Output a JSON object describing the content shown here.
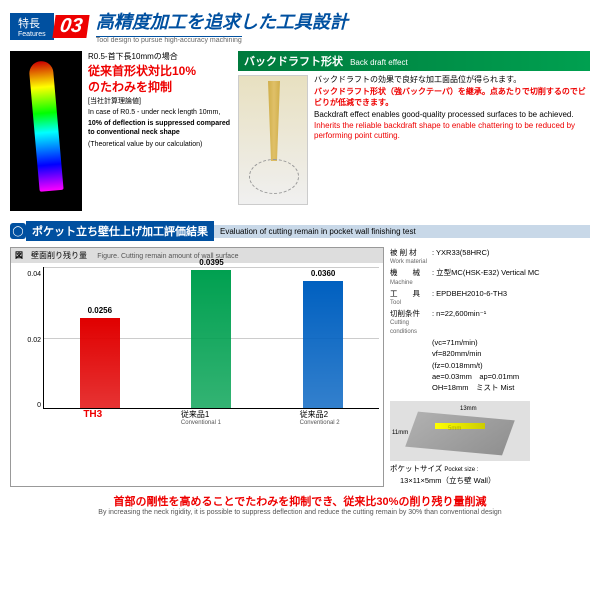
{
  "header": {
    "tab_jp": "特長",
    "tab_en": "Features",
    "num": "03",
    "title_jp": "高精度加工を追求した工具設計",
    "title_en": "Tool design to pursue high-accuracy machining"
  },
  "left": {
    "caption": "R0.5-首下長10mmの場合",
    "red1": "従来首形状対比10%",
    "red2": "のたわみを抑制",
    "note": "[当社計算理論値]",
    "en1": "In case of R0.5 - under neck length 10mm,",
    "en2": "10% of deflection is suppressed compared to conventional neck shape",
    "en3": "(Theoretical value by our calculation)"
  },
  "right": {
    "bar_jp": "バックドラフト形状",
    "bar_en": "Back draft effect",
    "jp1": "バックドラフトの効果で良好な加工面品位が得られます。",
    "red": "バックドラフト形状（強バックテーパ）を継承。点あたりで切削するのでビビりが低減できます。",
    "en1": "Backdraft effect enables good-quality processed surfaces to be achieved.",
    "en2": "Inherits the reliable backdraft shape to enable chattering to be reduced by performing point cutting."
  },
  "sec": {
    "jp": "ポケット立ち壁仕上げ加工評価結果",
    "en": "Evaluation of cutting remain in pocket wall finishing test"
  },
  "chart": {
    "head_jp": "壁面削り残り量",
    "head_en": "Figure. Cutting remain amount of wall surface",
    "ylabel": "壁面削り残り量（mm）",
    "ylabel_en": "Cutting remain amount of wall surface",
    "ylim": [
      0,
      0.04
    ],
    "yticks": [
      "0.04",
      "0.02",
      "0"
    ],
    "bars": [
      {
        "label": "TH3",
        "sub": "",
        "value": 0.0256,
        "val_label": "0.0256",
        "color": "#e00000",
        "height_pct": 64
      },
      {
        "label": "従来品1",
        "sub": "Conventional 1",
        "value": 0.0395,
        "val_label": "0.0395",
        "color": "#00a050",
        "height_pct": 98
      },
      {
        "label": "従来品2",
        "sub": "Conventional 2",
        "value": 0.036,
        "val_label": "0.0360",
        "color": "#0060c0",
        "height_pct": 90
      }
    ]
  },
  "cond": {
    "rows": [
      {
        "jp": "被 削 材",
        "en": "Work material",
        "val": "YXR33(58HRC)"
      },
      {
        "jp": "機　　械",
        "en": "Machine",
        "val": "立型MC(HSK-E32) Vertical MC"
      },
      {
        "jp": "工　　具",
        "en": "Tool",
        "val": "EPDBEH2010-6-TH3"
      },
      {
        "jp": "切削条件",
        "en": "Cutting conditions",
        "val": "n=22,600min⁻¹"
      }
    ],
    "extra": [
      "(vc=71m/min)",
      "vf=820mm/min",
      "(fz=0.018mm/t)",
      "ae=0.03mm　ap=0.01mm",
      "OH=18mm　ミスト Mist"
    ],
    "pocket_jp": "ポケットサイズ",
    "pocket_en": "Pocket size :",
    "pocket_val": "13×11×5mm（立ち壁 Wall）",
    "dim1": "13mm",
    "dim2": "11mm",
    "dim3": "5mm"
  },
  "bottom": {
    "red": "首部の剛性を高めることでたわみを抑制でき、従来比30%の削り残り量削減",
    "en": "By increasing the neck rigidity, it is possible to suppress deflection and reduce the cutting remain by 30% than conventional design"
  }
}
